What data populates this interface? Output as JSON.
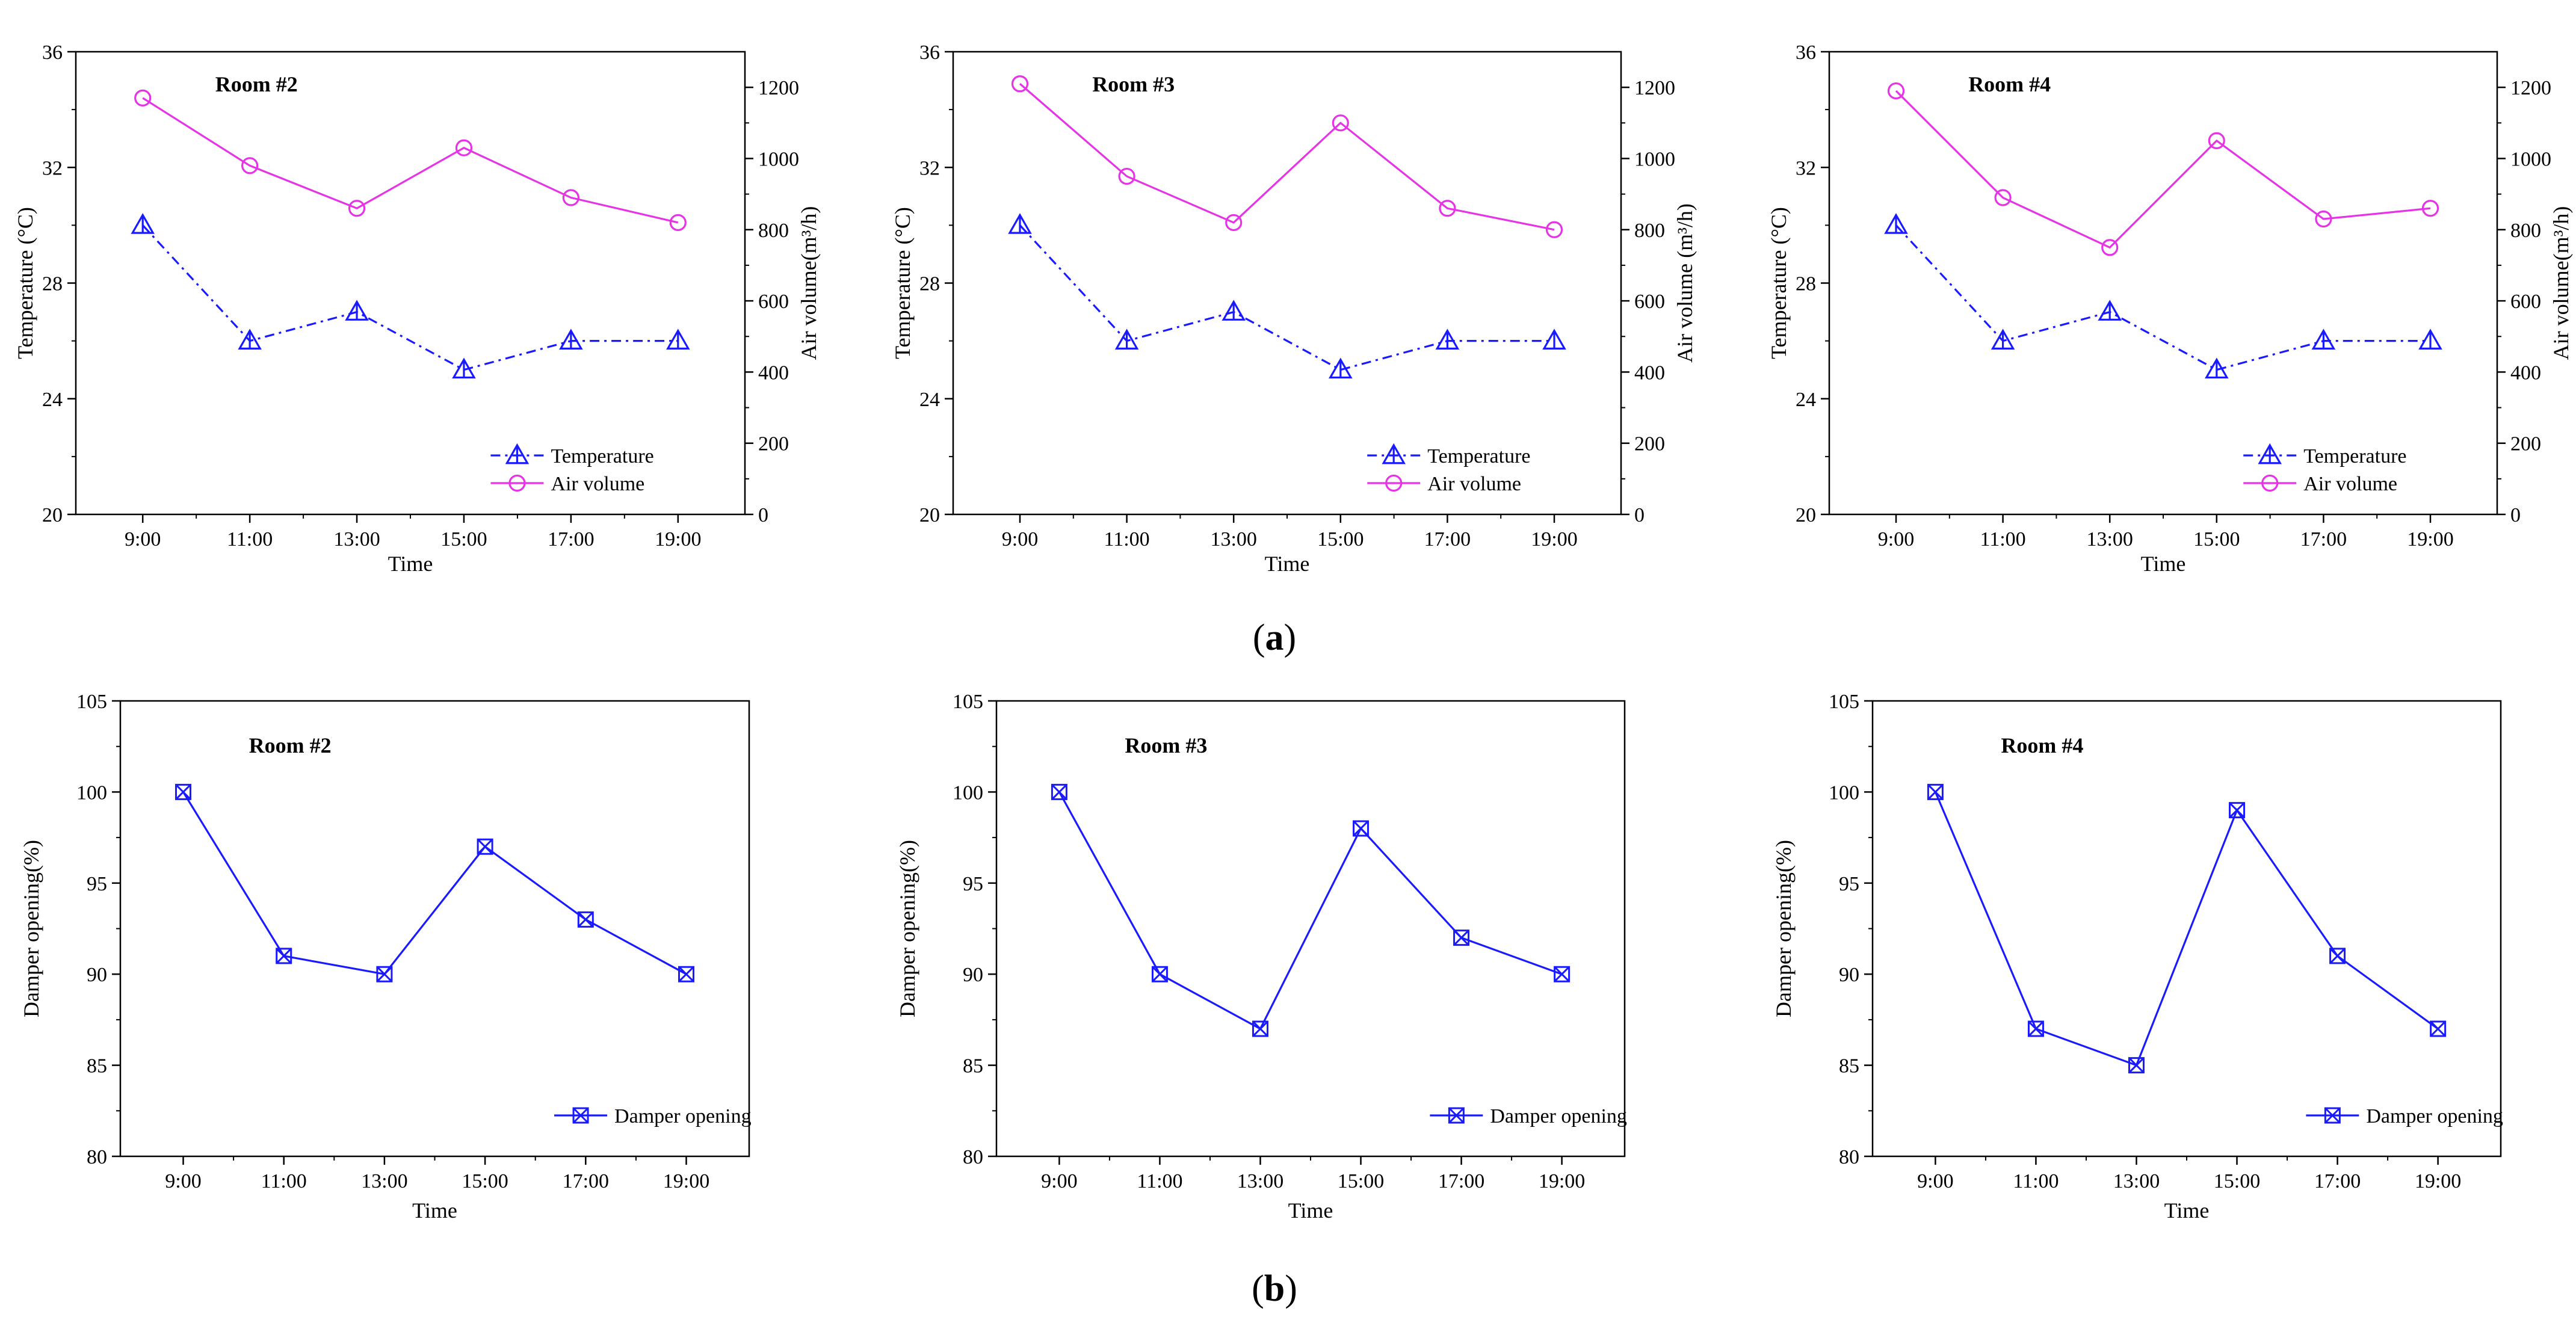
{
  "colors": {
    "temperature": "#1a1aff",
    "air_volume": "#e633e6",
    "damper": "#1a1aff",
    "axis": "#000000"
  },
  "panel_labels": {
    "a": "a",
    "b": "b"
  },
  "chart_data": [
    {
      "id": "a1",
      "type": "line",
      "title": "Room #2",
      "xlabel": "Time",
      "ylabel_left": "Temperature (°C)",
      "ylabel_right": "Air volume(m³/h)",
      "categories": [
        "9:00",
        "11:00",
        "13:00",
        "15:00",
        "17:00",
        "19:00"
      ],
      "ylim_left": [
        20,
        36
      ],
      "yticks_left": [
        "20",
        "24",
        "28",
        "32",
        "36"
      ],
      "ylim_right": [
        0,
        1300
      ],
      "yticks_right": [
        "0",
        "200",
        "400",
        "600",
        "800",
        "1000",
        "1200"
      ],
      "legend": [
        "Temperature",
        "Air volume"
      ],
      "series": [
        {
          "name": "Temperature",
          "axis": "left",
          "values": [
            30,
            26,
            27,
            25,
            26,
            26
          ]
        },
        {
          "name": "Air volume",
          "axis": "right",
          "values": [
            1170,
            980,
            860,
            1030,
            890,
            820
          ]
        }
      ]
    },
    {
      "id": "a2",
      "type": "line",
      "title": "Room #3",
      "xlabel": "Time",
      "ylabel_left": "Temperature (°C)",
      "ylabel_right": "Air volume (m³/h)",
      "categories": [
        "9:00",
        "11:00",
        "13:00",
        "15:00",
        "17:00",
        "19:00"
      ],
      "ylim_left": [
        20,
        36
      ],
      "yticks_left": [
        "20",
        "24",
        "28",
        "32",
        "36"
      ],
      "ylim_right": [
        0,
        1300
      ],
      "yticks_right": [
        "0",
        "200",
        "400",
        "600",
        "800",
        "1000",
        "1200"
      ],
      "legend": [
        "Temperature",
        "Air volume"
      ],
      "series": [
        {
          "name": "Temperature",
          "axis": "left",
          "values": [
            30,
            26,
            27,
            25,
            26,
            26
          ]
        },
        {
          "name": "Air volume",
          "axis": "right",
          "values": [
            1210,
            950,
            820,
            1100,
            860,
            800
          ]
        }
      ]
    },
    {
      "id": "a3",
      "type": "line",
      "title": "Room #4",
      "xlabel": "Time",
      "ylabel_left": "Temperature (°C)",
      "ylabel_right": "Air volume(m³/h)",
      "categories": [
        "9:00",
        "11:00",
        "13:00",
        "15:00",
        "17:00",
        "19:00"
      ],
      "ylim_left": [
        20,
        36
      ],
      "yticks_left": [
        "20",
        "24",
        "28",
        "32",
        "36"
      ],
      "ylim_right": [
        0,
        1300
      ],
      "yticks_right": [
        "0",
        "200",
        "400",
        "600",
        "800",
        "1000",
        "1200"
      ],
      "legend": [
        "Temperature",
        "Air volume"
      ],
      "series": [
        {
          "name": "Temperature",
          "axis": "left",
          "values": [
            30,
            26,
            27,
            25,
            26,
            26
          ]
        },
        {
          "name": "Air volume",
          "axis": "right",
          "values": [
            1190,
            890,
            750,
            1050,
            830,
            860
          ]
        }
      ]
    },
    {
      "id": "b1",
      "type": "line",
      "title": "Room #2",
      "xlabel": "Time",
      "ylabel_left": "Damper opening(%)",
      "categories": [
        "9:00",
        "11:00",
        "13:00",
        "15:00",
        "17:00",
        "19:00"
      ],
      "ylim_left": [
        80,
        105
      ],
      "yticks_left": [
        "80",
        "85",
        "90",
        "95",
        "100",
        "105"
      ],
      "legend": [
        "Damper opening"
      ],
      "series": [
        {
          "name": "Damper opening",
          "axis": "left",
          "values": [
            100,
            91,
            90,
            97,
            93,
            90
          ]
        }
      ]
    },
    {
      "id": "b2",
      "type": "line",
      "title": "Room #3",
      "xlabel": "Time",
      "ylabel_left": "Damper opening(%)",
      "categories": [
        "9:00",
        "11:00",
        "13:00",
        "15:00",
        "17:00",
        "19:00"
      ],
      "ylim_left": [
        80,
        105
      ],
      "yticks_left": [
        "80",
        "85",
        "90",
        "95",
        "100",
        "105"
      ],
      "legend": [
        "Damper opening"
      ],
      "series": [
        {
          "name": "Damper opening",
          "axis": "left",
          "values": [
            100,
            90,
            87,
            98,
            92,
            90
          ]
        }
      ]
    },
    {
      "id": "b3",
      "type": "line",
      "title": "Room #4",
      "xlabel": "Time",
      "ylabel_left": "Damper opening(%)",
      "categories": [
        "9:00",
        "11:00",
        "13:00",
        "15:00",
        "17:00",
        "19:00"
      ],
      "ylim_left": [
        80,
        105
      ],
      "yticks_left": [
        "80",
        "85",
        "90",
        "95",
        "100",
        "105"
      ],
      "legend": [
        "Damper opening"
      ],
      "series": [
        {
          "name": "Damper opening",
          "axis": "left",
          "values": [
            100,
            87,
            85,
            99,
            91,
            87
          ]
        }
      ]
    }
  ]
}
